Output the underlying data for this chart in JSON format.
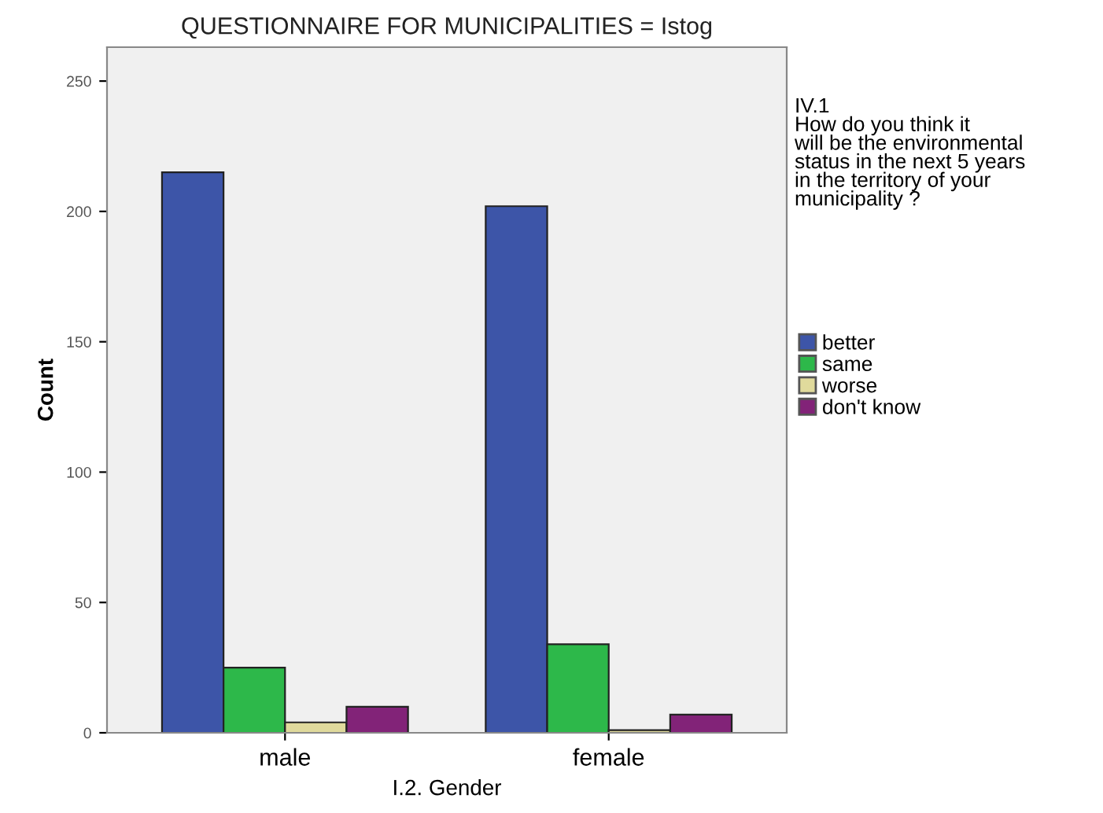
{
  "chart_data": {
    "type": "bar",
    "title": "QUESTIONNAIRE FOR MUNICIPALITIES = Istog",
    "xlabel": "I.2. Gender",
    "ylabel": "Count",
    "legend_title": "IV.1\nHow do you think it\nwill be the environmental\nstatus in the next 5 years\nin the territory of your\nmunicipality ?",
    "categories": [
      "male",
      "female"
    ],
    "series": [
      {
        "name": "better",
        "color": "#3d55a8",
        "values": [
          215,
          202
        ]
      },
      {
        "name": "same",
        "color": "#2db84a",
        "values": [
          25,
          34
        ]
      },
      {
        "name": "worse",
        "color": "#e0da9c",
        "values": [
          4,
          1
        ]
      },
      {
        "name": "don't know",
        "color": "#822378",
        "values": [
          10,
          7
        ]
      }
    ],
    "ylim": [
      0,
      263
    ],
    "yticks": [
      0,
      50,
      100,
      150,
      200,
      250
    ],
    "grid": false,
    "legend": "right"
  }
}
